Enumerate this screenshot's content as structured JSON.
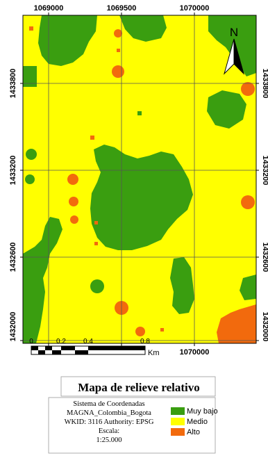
{
  "map": {
    "title": "Mapa de relieve relativo",
    "north_label": "N",
    "x_ticks": [
      "1069000",
      "1069500",
      "1070000"
    ],
    "y_ticks": [
      "1433800",
      "1433200",
      "1432600",
      "1432000"
    ],
    "scale_bar": {
      "labels": [
        "0",
        "0.2",
        "0.4",
        "0.8"
      ],
      "unit": "Km"
    },
    "crs_lines": [
      "Sistema de Coordenadas",
      "MAGNA_Colombia_Bogota",
      "WKID: 3116 Authority: EPSG",
      "Escala:",
      "1:25.000"
    ],
    "legend": [
      {
        "label": "Muy bajo",
        "color": "#3a9e10"
      },
      {
        "label": "Medio",
        "color": "#ffff00"
      },
      {
        "label": "Alto",
        "color": "#f26a0d"
      }
    ],
    "colors": {
      "muy_bajo": "#3a9e10",
      "medio": "#ffff00",
      "alto": "#f26a0d"
    }
  }
}
